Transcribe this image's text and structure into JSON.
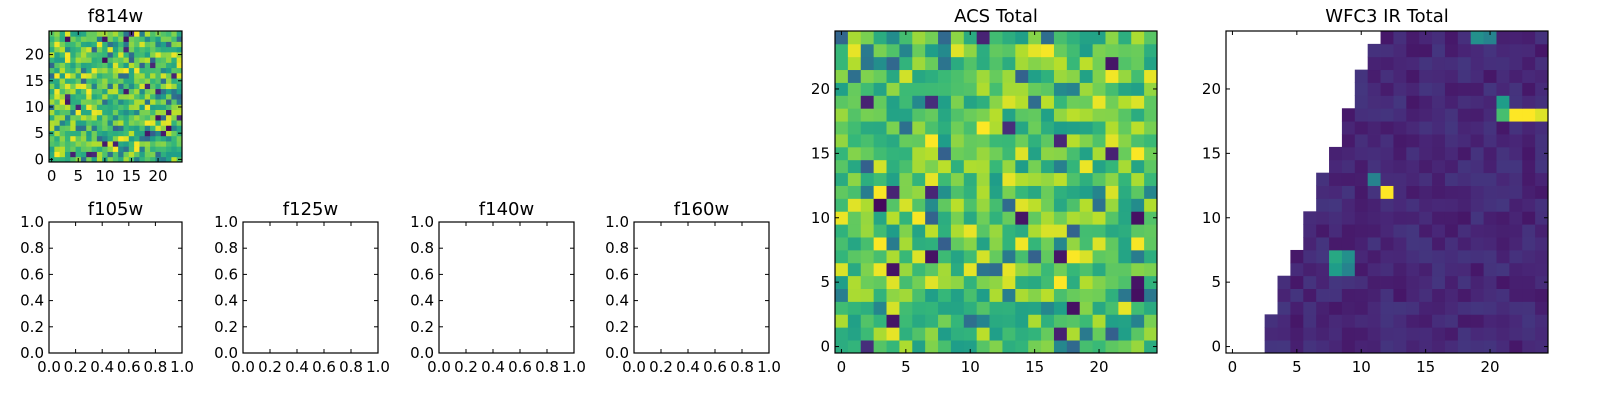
{
  "chart_data": [
    {
      "id": "f814w",
      "type": "heatmap",
      "title": "f814w",
      "xlabel": "",
      "ylabel": "",
      "xlim": [
        -0.5,
        24.5
      ],
      "ylim": [
        -0.5,
        24.5
      ],
      "xticks": [
        "0",
        "5",
        "10",
        "15",
        "20"
      ],
      "yticks": [
        "0",
        "5",
        "10",
        "15",
        "20"
      ],
      "colormap": "viridis",
      "grid": [
        25,
        25
      ],
      "values": "random noise, values mostly in the 0.55–0.9 range with sparse low pixels"
    },
    {
      "id": "f105w",
      "type": "empty",
      "title": "f105w",
      "xlim": [
        0,
        1
      ],
      "ylim": [
        0,
        1
      ],
      "xticks": [
        "0.0",
        "0.2",
        "0.4",
        "0.6",
        "0.8",
        "1.0"
      ],
      "yticks": [
        "0.0",
        "0.2",
        "0.4",
        "0.6",
        "0.8",
        "1.0"
      ]
    },
    {
      "id": "f125w",
      "type": "empty",
      "title": "f125w",
      "xlim": [
        0,
        1
      ],
      "ylim": [
        0,
        1
      ],
      "xticks": [
        "0.0",
        "0.2",
        "0.4",
        "0.6",
        "0.8",
        "1.0"
      ],
      "yticks": [
        "0.0",
        "0.2",
        "0.4",
        "0.6",
        "0.8",
        "1.0"
      ]
    },
    {
      "id": "f140w",
      "type": "empty",
      "title": "f140w",
      "xlim": [
        0,
        1
      ],
      "ylim": [
        0,
        1
      ],
      "xticks": [
        "0.0",
        "0.2",
        "0.4",
        "0.6",
        "0.8",
        "1.0"
      ],
      "yticks": [
        "0.0",
        "0.2",
        "0.4",
        "0.6",
        "0.8",
        "1.0"
      ]
    },
    {
      "id": "f160w",
      "type": "empty",
      "title": "f160w",
      "xlim": [
        0,
        1
      ],
      "ylim": [
        0,
        1
      ],
      "xticks": [
        "0.0",
        "0.2",
        "0.4",
        "0.6",
        "0.8",
        "1.0"
      ],
      "yticks": [
        "0.0",
        "0.2",
        "0.4",
        "0.6",
        "0.8",
        "1.0"
      ]
    },
    {
      "id": "acs_total",
      "type": "heatmap",
      "title": "ACS Total",
      "xlim": [
        -0.5,
        24.5
      ],
      "ylim": [
        -0.5,
        24.5
      ],
      "xticks": [
        "0",
        "5",
        "10",
        "15",
        "20"
      ],
      "yticks": [
        "0",
        "5",
        "10",
        "15",
        "20"
      ],
      "colormap": "viridis",
      "grid": [
        25,
        25
      ],
      "values": "random noise, values mostly in the 0.5–0.95 range with sparse low pixels"
    },
    {
      "id": "wfc3_ir_total",
      "type": "heatmap",
      "title": "WFC3 IR Total",
      "xlim": [
        -0.5,
        24.5
      ],
      "ylim": [
        -0.5,
        24.5
      ],
      "xticks": [
        "0",
        "5",
        "10",
        "15",
        "20"
      ],
      "yticks": [
        "0",
        "5",
        "10",
        "15",
        "20"
      ],
      "colormap": "viridis",
      "grid": [
        25,
        25
      ],
      "valid_region": "pixels to the left of a diagonal edge (from column 3 at row 0 to column 12 at row 24) are empty (white)",
      "background_value": 0.06,
      "hot_pixels": [
        {
          "x": 12,
          "y": 12,
          "value": 1.0
        },
        {
          "x": 11,
          "y": 13,
          "value": 0.45
        },
        {
          "x": 8,
          "y": 7,
          "value": 0.6
        },
        {
          "x": 9,
          "y": 7,
          "value": 0.5
        },
        {
          "x": 8,
          "y": 6,
          "value": 0.55
        },
        {
          "x": 9,
          "y": 6,
          "value": 0.45
        },
        {
          "x": 22,
          "y": 18,
          "value": 1.0
        },
        {
          "x": 23,
          "y": 18,
          "value": 1.0
        },
        {
          "x": 24,
          "y": 18,
          "value": 0.95
        },
        {
          "x": 21,
          "y": 18,
          "value": 0.7
        },
        {
          "x": 21,
          "y": 19,
          "value": 0.55
        },
        {
          "x": 19,
          "y": 24,
          "value": 0.5
        },
        {
          "x": 20,
          "y": 24,
          "value": 0.45
        }
      ]
    }
  ]
}
